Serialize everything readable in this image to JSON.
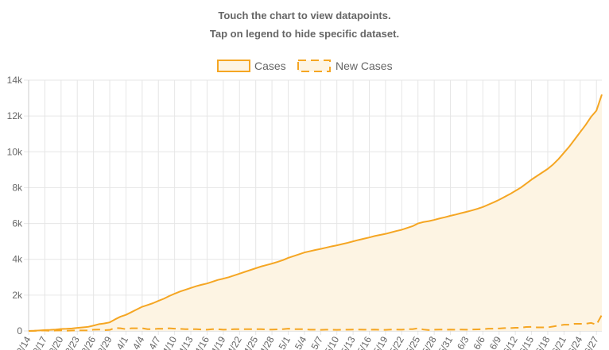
{
  "instructions": {
    "line1": "Touch the chart to view datapoints.",
    "line2": "Tap on legend to hide specific dataset."
  },
  "colors": {
    "line": "#f5a623",
    "fill": "#fdf4e3",
    "grid": "#e6e6e6",
    "text": "#666666"
  },
  "chart_data": {
    "type": "line",
    "legend_position": "top",
    "grid": true,
    "ylim": [
      0,
      14000
    ],
    "yticks": [
      0,
      2000,
      4000,
      6000,
      8000,
      10000,
      12000,
      14000
    ],
    "ytick_labels": [
      "0",
      "2k",
      "4k",
      "6k",
      "8k",
      "10k",
      "12k",
      "14k"
    ],
    "x": [
      "3/14",
      "3/15",
      "3/16",
      "3/17",
      "3/18",
      "3/19",
      "3/20",
      "3/21",
      "3/22",
      "3/23",
      "3/24",
      "3/25",
      "3/26",
      "3/27",
      "3/28",
      "3/29",
      "3/30",
      "3/31",
      "4/1",
      "4/2",
      "4/3",
      "4/4",
      "4/5",
      "4/6",
      "4/7",
      "4/8",
      "4/9",
      "4/10",
      "4/11",
      "4/12",
      "4/13",
      "4/14",
      "4/15",
      "4/16",
      "4/17",
      "4/18",
      "4/19",
      "4/20",
      "4/21",
      "4/22",
      "4/23",
      "4/24",
      "4/25",
      "4/26",
      "4/27",
      "4/28",
      "4/29",
      "4/30",
      "5/1",
      "5/2",
      "5/3",
      "5/4",
      "5/5",
      "5/6",
      "5/7",
      "5/8",
      "5/9",
      "5/10",
      "5/11",
      "5/12",
      "5/13",
      "5/14",
      "5/15",
      "5/16",
      "5/17",
      "5/18",
      "5/19",
      "5/20",
      "5/21",
      "5/22",
      "5/23",
      "5/24",
      "5/25",
      "5/26",
      "5/27",
      "5/28",
      "5/29",
      "5/30",
      "5/31",
      "6/1",
      "6/2",
      "6/3",
      "6/4",
      "6/5",
      "6/6",
      "6/7",
      "6/8",
      "6/9",
      "6/10",
      "6/11",
      "6/12",
      "6/13",
      "6/14",
      "6/15",
      "6/16",
      "6/17",
      "6/18",
      "6/19",
      "6/20",
      "6/21",
      "6/22",
      "6/23",
      "6/24",
      "6/25",
      "6/26",
      "6/27",
      "6/28"
    ],
    "x_tick_labels": [
      "3/14",
      "3/17",
      "3/20",
      "3/23",
      "3/26",
      "3/29",
      "4/1",
      "4/4",
      "4/7",
      "4/10",
      "4/13",
      "4/16",
      "4/19",
      "4/22",
      "4/25",
      "4/28",
      "5/1",
      "5/4",
      "5/7",
      "5/10",
      "5/13",
      "5/16",
      "5/19",
      "5/22",
      "5/25",
      "5/28",
      "5/31",
      "6/3",
      "6/6",
      "6/9",
      "6/12",
      "6/15",
      "6/18",
      "6/21",
      "6/24",
      "6/27"
    ],
    "series": [
      {
        "name": "Cases",
        "style": "solid-filled",
        "values": [
          2,
          10,
          30,
          50,
          60,
          80,
          110,
          120,
          140,
          170,
          200,
          230,
          300,
          380,
          420,
          480,
          650,
          800,
          900,
          1050,
          1200,
          1350,
          1450,
          1550,
          1680,
          1800,
          1950,
          2080,
          2200,
          2300,
          2400,
          2500,
          2580,
          2650,
          2750,
          2850,
          2920,
          3000,
          3100,
          3200,
          3300,
          3400,
          3500,
          3600,
          3680,
          3760,
          3850,
          3950,
          4080,
          4180,
          4280,
          4380,
          4450,
          4520,
          4580,
          4650,
          4720,
          4780,
          4850,
          4920,
          5000,
          5080,
          5150,
          5220,
          5300,
          5360,
          5420,
          5500,
          5580,
          5650,
          5750,
          5850,
          6000,
          6080,
          6130,
          6200,
          6280,
          6350,
          6430,
          6500,
          6580,
          6650,
          6730,
          6820,
          6920,
          7050,
          7180,
          7320,
          7480,
          7640,
          7820,
          8000,
          8220,
          8450,
          8650,
          8850,
          9050,
          9300,
          9600,
          9950,
          10300,
          10700,
          11100,
          11500,
          11950,
          12300,
          13200
        ]
      },
      {
        "name": "New Cases",
        "style": "dashed",
        "values": [
          2,
          8,
          20,
          20,
          10,
          20,
          30,
          10,
          20,
          30,
          30,
          30,
          70,
          80,
          40,
          60,
          170,
          150,
          100,
          150,
          150,
          150,
          100,
          100,
          130,
          120,
          150,
          130,
          120,
          100,
          100,
          100,
          80,
          70,
          100,
          100,
          70,
          80,
          100,
          100,
          100,
          100,
          100,
          100,
          80,
          80,
          90,
          100,
          130,
          100,
          100,
          100,
          70,
          70,
          60,
          70,
          70,
          60,
          70,
          70,
          80,
          80,
          70,
          70,
          80,
          60,
          60,
          80,
          80,
          70,
          100,
          100,
          150,
          80,
          50,
          70,
          80,
          70,
          80,
          70,
          80,
          70,
          80,
          90,
          100,
          130,
          130,
          140,
          160,
          160,
          180,
          180,
          220,
          230,
          200,
          200,
          200,
          250,
          300,
          350,
          350,
          400,
          400,
          400,
          450,
          350,
          900
        ]
      }
    ]
  }
}
